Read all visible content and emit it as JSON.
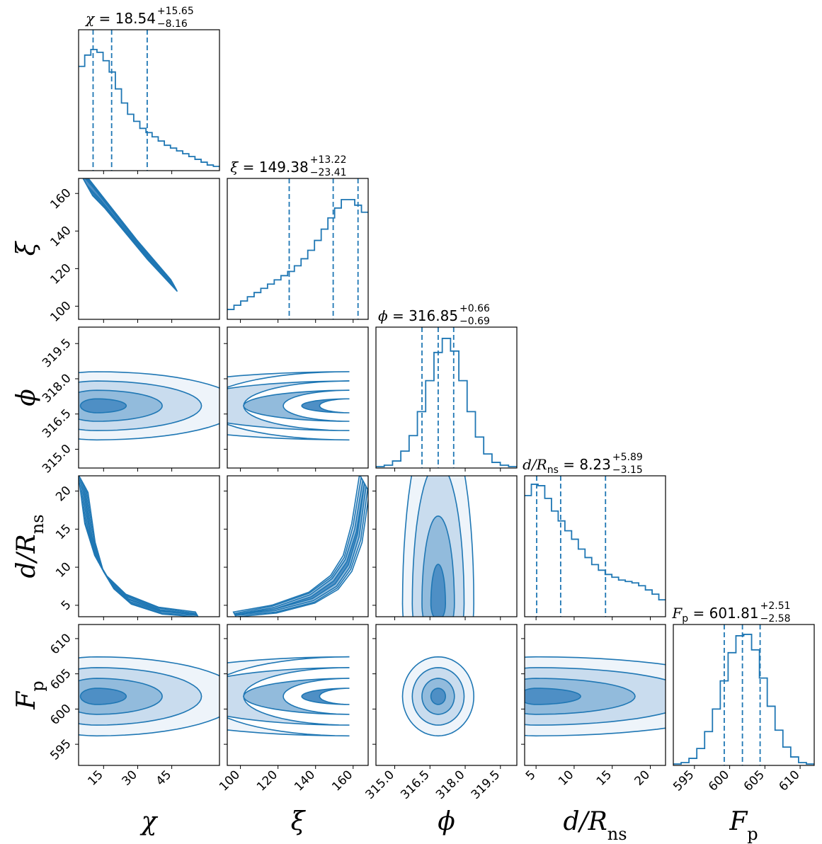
{
  "chart_data": {
    "type": "corner",
    "color": "#1f77b4",
    "params": [
      {
        "id": "chi",
        "label": "χ",
        "range": [
          4,
          66
        ],
        "ticks": [
          15,
          30,
          45
        ],
        "tick_labels": [
          "15",
          "30",
          "45"
        ],
        "title": {
          "name": "χ",
          "median": "18.54",
          "upper": "+15.65",
          "lower": "−8.16"
        },
        "quantiles": [
          10.38,
          18.54,
          34.19
        ],
        "hist": [
          0.74,
          0.82,
          0.86,
          0.84,
          0.78,
          0.7,
          0.58,
          0.48,
          0.4,
          0.35,
          0.3,
          0.27,
          0.24,
          0.21,
          0.18,
          0.16,
          0.14,
          0.12,
          0.1,
          0.08,
          0.06,
          0.04,
          0.03
        ]
      },
      {
        "id": "xi",
        "label": "ξ",
        "range": [
          93,
          168
        ],
        "ticks": [
          100,
          120,
          140,
          160
        ],
        "tick_labels": [
          "100",
          "120",
          "140",
          "160"
        ],
        "title": {
          "name": "ξ",
          "median": "149.38",
          "upper": "+13.22",
          "lower": "−23.41"
        },
        "quantiles": [
          125.97,
          149.38,
          162.6
        ],
        "hist": [
          0.07,
          0.1,
          0.13,
          0.16,
          0.19,
          0.22,
          0.25,
          0.28,
          0.31,
          0.34,
          0.38,
          0.43,
          0.49,
          0.56,
          0.64,
          0.72,
          0.79,
          0.85,
          0.85,
          0.81,
          0.76
        ]
      },
      {
        "id": "phi",
        "label": "ϕ",
        "range": [
          314.2,
          320.2
        ],
        "ticks": [
          315.0,
          316.5,
          318.0,
          319.5
        ],
        "tick_labels": [
          "315.0",
          "316.5",
          "318.0",
          "319.5"
        ],
        "title": {
          "name": "ϕ",
          "median": "316.85",
          "upper": "+0.66",
          "lower": "−0.69"
        },
        "quantiles": [
          316.16,
          316.85,
          317.51
        ],
        "hist": [
          0.01,
          0.02,
          0.05,
          0.12,
          0.23,
          0.4,
          0.62,
          0.82,
          0.92,
          0.83,
          0.62,
          0.4,
          0.22,
          0.1,
          0.04,
          0.02,
          0.01
        ]
      },
      {
        "id": "d",
        "label": "d/R",
        "label_sub": "ns",
        "range": [
          3.5,
          22
        ],
        "ticks": [
          5,
          10,
          15,
          20
        ],
        "tick_labels": [
          "5",
          "10",
          "15",
          "20"
        ],
        "title": {
          "name": "d/R",
          "sub": "ns",
          "median": "8.23",
          "upper": "+5.89",
          "lower": "−3.15"
        },
        "quantiles": [
          5.08,
          8.23,
          14.12
        ],
        "hist": [
          0.86,
          0.94,
          0.93,
          0.84,
          0.75,
          0.68,
          0.61,
          0.55,
          0.48,
          0.42,
          0.37,
          0.33,
          0.3,
          0.28,
          0.26,
          0.25,
          0.24,
          0.22,
          0.19,
          0.16,
          0.12
        ]
      },
      {
        "id": "fp",
        "label": "F",
        "label_sub": "p",
        "range": [
          592,
          612
        ],
        "ticks": [
          595,
          600,
          605,
          610
        ],
        "tick_labels": [
          "595",
          "600",
          "605",
          "610"
        ],
        "title": {
          "name": "F",
          "sub": "p",
          "median": "601.81",
          "upper": "+2.51",
          "lower": "−2.58"
        },
        "quantiles": [
          599.23,
          601.81,
          604.32
        ],
        "hist": [
          0.01,
          0.02,
          0.05,
          0.12,
          0.24,
          0.4,
          0.6,
          0.8,
          0.92,
          0.93,
          0.82,
          0.62,
          0.42,
          0.25,
          0.13,
          0.06,
          0.02,
          0.01
        ]
      }
    ],
    "pairs": [
      {
        "x": "chi",
        "y": "xi",
        "shape": "ridge",
        "ridge": [
          [
            6,
            168
          ],
          [
            12,
            160
          ],
          [
            20,
            148
          ],
          [
            32,
            130
          ],
          [
            46,
            111
          ]
        ],
        "widths": [
          [
            3.5,
            3.0,
            2.2,
            1.4
          ],
          [
            3.0,
            2.6,
            1.9,
            1.1
          ],
          [
            2.6,
            2.2,
            1.5,
            0.8
          ],
          [
            2.0,
            1.6,
            1.0,
            0.4
          ],
          [
            1.2,
            0.9,
            0.5,
            0.1
          ]
        ]
      },
      {
        "x": "chi",
        "y": "phi",
        "shape": "ellipse",
        "center": [
          12,
          316.85
        ],
        "sx": 16,
        "sy": 0.66,
        "skew_x": 1.8
      },
      {
        "x": "xi",
        "y": "phi",
        "shape": "ellipse",
        "center": [
          158,
          316.85
        ],
        "sx": 22,
        "sy": 0.66,
        "skew_x": -1.6
      },
      {
        "x": "phi",
        "y": "fp",
        "shape": "ellipse",
        "center": [
          316.85,
          601.8
        ],
        "sx": 0.69,
        "sy": 2.55,
        "skew_x": 1.0
      },
      {
        "x": "phi",
        "y": "d",
        "shape": "ellipse",
        "center": [
          316.85,
          5.2
        ],
        "sx": 0.69,
        "sy": 4.8,
        "skew_x": 1.0,
        "skew_y": 2.4
      },
      {
        "x": "chi",
        "y": "fp",
        "shape": "ellipse",
        "center": [
          12,
          601.8
        ],
        "sx": 16,
        "sy": 2.55,
        "skew_x": 1.8
      },
      {
        "x": "xi",
        "y": "fp",
        "shape": "ellipse",
        "center": [
          158,
          601.8
        ],
        "sx": 22,
        "sy": 2.55,
        "skew_x": -1.6
      },
      {
        "x": "d",
        "y": "fp",
        "shape": "ellipse",
        "center": [
          5.0,
          601.8
        ],
        "sx": 5.0,
        "sy": 2.55,
        "skew_x": 2.6
      },
      {
        "x": "chi",
        "y": "d",
        "shape": "ridge",
        "ridge": [
          [
            6,
            21
          ],
          [
            9,
            14.5
          ],
          [
            13,
            10.5
          ],
          [
            18,
            8.0
          ],
          [
            26,
            5.8
          ],
          [
            40,
            4.3
          ],
          [
            56,
            3.8
          ]
        ],
        "widths": [
          [
            1.8,
            1.2,
            0.6,
            0.0
          ],
          [
            1.9,
            1.4,
            0.8,
            0.2
          ],
          [
            1.6,
            1.2,
            0.8,
            0.3
          ],
          [
            1.3,
            1.0,
            0.7,
            0.3
          ],
          [
            1.0,
            0.8,
            0.5,
            0.1
          ],
          [
            0.7,
            0.5,
            0.2,
            0.0
          ],
          [
            0.5,
            0.2,
            0.0,
            0.0
          ]
        ]
      },
      {
        "x": "xi",
        "y": "d",
        "shape": "ridge",
        "ridge": [
          [
            97,
            3.8
          ],
          [
            118,
            4.5
          ],
          [
            138,
            6.0
          ],
          [
            150,
            8.0
          ],
          [
            157,
            10.5
          ],
          [
            162,
            14.5
          ],
          [
            166,
            21
          ]
        ],
        "widths": [
          [
            0.5,
            0.2,
            0.0,
            0.0
          ],
          [
            0.8,
            0.6,
            0.3,
            0.0
          ],
          [
            1.1,
            0.9,
            0.6,
            0.2
          ],
          [
            1.4,
            1.1,
            0.8,
            0.3
          ],
          [
            1.6,
            1.2,
            0.8,
            0.3
          ],
          [
            1.9,
            1.4,
            0.8,
            0.2
          ],
          [
            1.8,
            1.2,
            0.6,
            0.0
          ]
        ]
      }
    ]
  }
}
